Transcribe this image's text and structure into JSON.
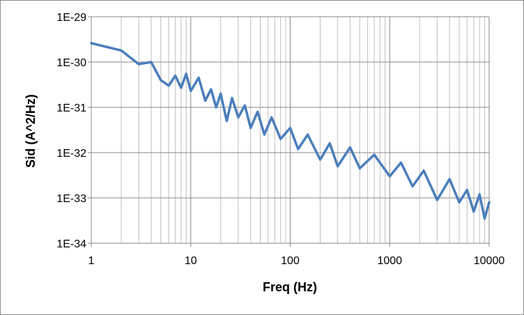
{
  "chart_data": {
    "type": "line",
    "title": "",
    "xlabel": "Freq (Hz)",
    "ylabel": "Sid (A^2/Hz)",
    "xscale": "log",
    "yscale": "log",
    "xlim": [
      1,
      10000
    ],
    "ylim": [
      1e-34,
      1e-29
    ],
    "grid": true,
    "legend": "none",
    "x_tick_labels": [
      "1",
      "10",
      "100",
      "1000",
      "10000"
    ],
    "y_tick_labels": [
      "1E-29",
      "1E-30",
      "1E-31",
      "1E-32",
      "1E-33",
      "1E-34"
    ],
    "series": [
      {
        "color": "#4a7ebb",
        "x": [
          1,
          2,
          3,
          4,
          5,
          6,
          7,
          8,
          9,
          10,
          12,
          14,
          16,
          18,
          20,
          23,
          26,
          30,
          35,
          40,
          47,
          55,
          65,
          80,
          100,
          120,
          150,
          200,
          250,
          300,
          400,
          500,
          700,
          1000,
          1300,
          1700,
          2200,
          3000,
          4000,
          5000,
          6000,
          7000,
          8000,
          9000,
          10000
        ],
        "y": [
          2.6e-30,
          1.8e-30,
          9e-31,
          1e-30,
          4e-31,
          3e-31,
          5e-31,
          2.7e-31,
          5.5e-31,
          2.3e-31,
          4.5e-31,
          1.4e-31,
          2.5e-31,
          1e-31,
          2e-31,
          5e-32,
          1.6e-31,
          6e-32,
          1.1e-31,
          3.5e-32,
          8e-32,
          2.5e-32,
          6e-32,
          2e-32,
          3.5e-32,
          1.2e-32,
          2.5e-32,
          7e-33,
          1.6e-32,
          5e-33,
          1.3e-32,
          4.5e-33,
          9e-33,
          3e-33,
          6e-33,
          1.8e-33,
          4e-33,
          9e-34,
          2.6e-33,
          8e-34,
          1.5e-33,
          5e-34,
          1.2e-33,
          3.5e-34,
          8e-34
        ]
      }
    ]
  }
}
